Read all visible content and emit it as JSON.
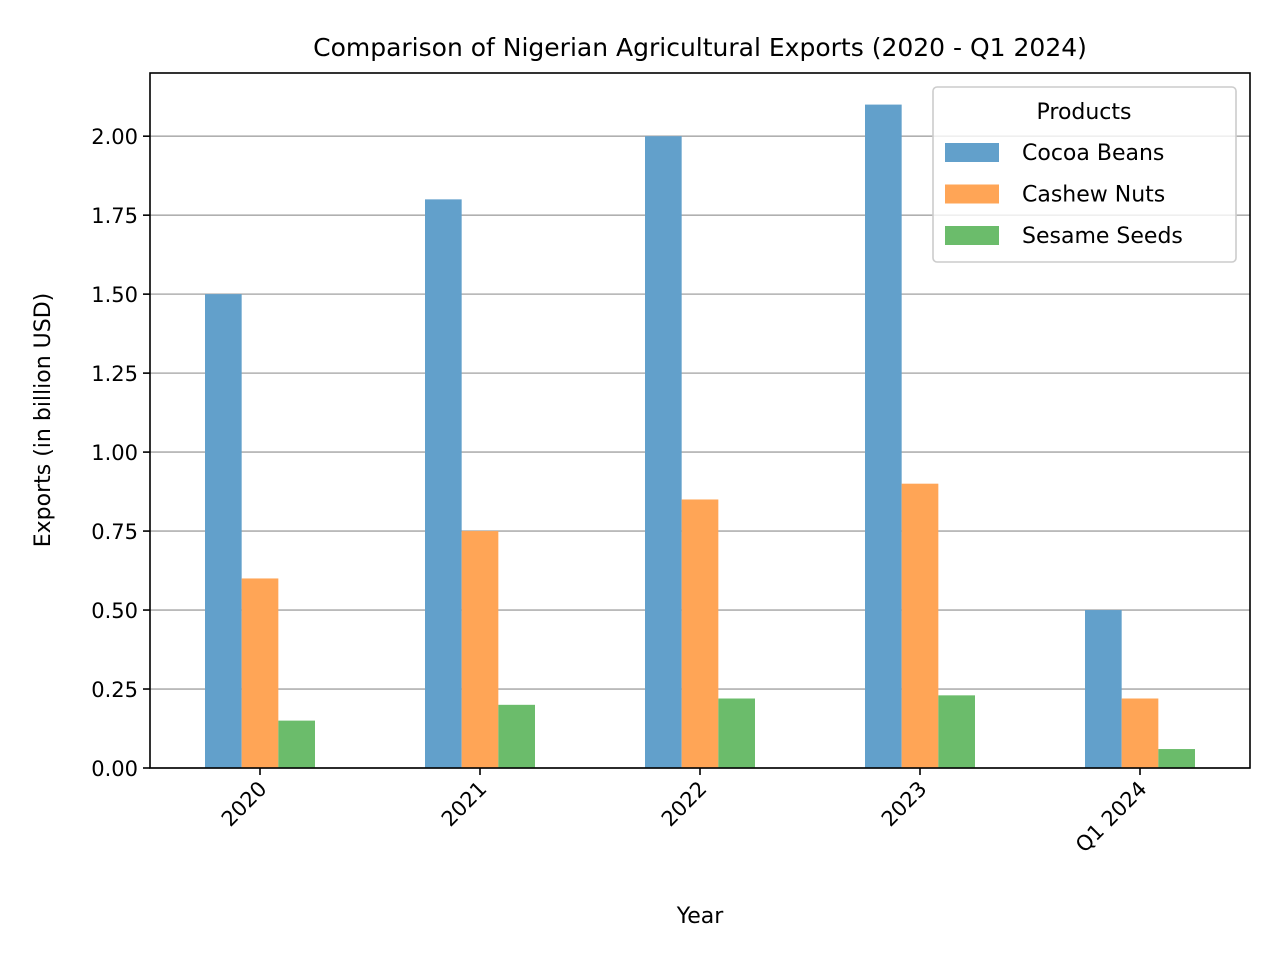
{
  "chart_data": {
    "type": "bar",
    "title": "Comparison of Nigerian Agricultural Exports (2020 - Q1 2024)",
    "xlabel": "Year",
    "ylabel": "Exports (in billion USD)",
    "categories": [
      "2020",
      "2021",
      "2022",
      "2023",
      "Q1 2024"
    ],
    "series": [
      {
        "name": "Cocoa Beans",
        "color": "#62a0cb",
        "values": [
          1.5,
          1.8,
          2.0,
          2.1,
          0.5
        ]
      },
      {
        "name": "Cashew Nuts",
        "color": "#ffa556",
        "values": [
          0.6,
          0.75,
          0.85,
          0.9,
          0.22
        ]
      },
      {
        "name": "Sesame Seeds",
        "color": "#6bbc6b",
        "values": [
          0.15,
          0.2,
          0.22,
          0.23,
          0.06
        ]
      }
    ],
    "ylim": [
      0,
      2.2
    ],
    "yticks": [
      "0.00",
      "0.25",
      "0.50",
      "0.75",
      "1.00",
      "1.25",
      "1.50",
      "1.75",
      "2.00"
    ],
    "grid": "y",
    "legend": {
      "title": "Products",
      "placement": "top-right"
    }
  }
}
